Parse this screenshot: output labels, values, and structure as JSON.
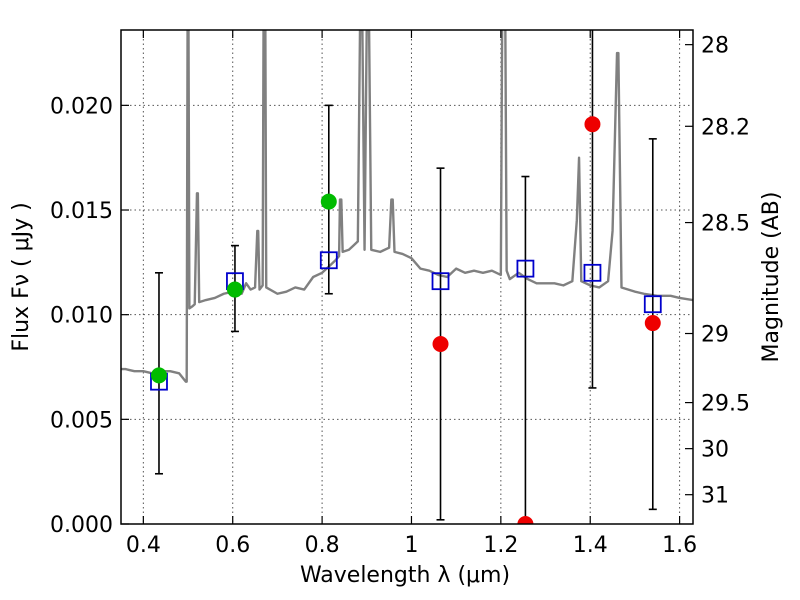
{
  "chart_data": {
    "type": "scatter",
    "xlabel": "Wavelength  λ (μm)",
    "ylabel": "Flux  Fν  ( μJy )",
    "y2label": "Magnitude (AB)",
    "xlim": [
      0.35,
      1.63
    ],
    "ylim": [
      0.0,
      0.0236
    ],
    "grid": true,
    "x_ticks": [
      0.4,
      0.6,
      0.8,
      1.0,
      1.2,
      1.4,
      1.6
    ],
    "x_tick_labels": [
      "0.4",
      "0.6",
      "0.8",
      "1",
      "1.2",
      "1.4",
      "1.6"
    ],
    "y_ticks": [
      0.0,
      0.005,
      0.01,
      0.015,
      0.02
    ],
    "y_tick_labels": [
      "0.000",
      "0.005",
      "0.010",
      "0.015",
      "0.020"
    ],
    "y2_ticks": [
      {
        "label": "28",
        "flux": 0.0229
      },
      {
        "label": "28.2",
        "flux": 0.019
      },
      {
        "label": "28.5",
        "flux": 0.0144
      },
      {
        "label": "29",
        "flux": 0.0091
      },
      {
        "label": "29.5",
        "flux": 0.0058
      },
      {
        "label": "30",
        "flux": 0.0036
      },
      {
        "label": "31",
        "flux": 0.0014
      }
    ],
    "colors": {
      "sed": "#808080",
      "model": "#0000cc",
      "detected": "#00bb00",
      "observed": "#ee0000",
      "errorbar": "#000000",
      "grid": "#555555"
    },
    "series": [
      {
        "type": "line",
        "color": "#808080",
        "points": [
          [
            0.35,
            0.0074
          ],
          [
            0.36,
            0.0074
          ],
          [
            0.38,
            0.0073
          ],
          [
            0.4,
            0.0073
          ],
          [
            0.42,
            0.0072
          ],
          [
            0.44,
            0.0073
          ],
          [
            0.46,
            0.0073
          ],
          [
            0.48,
            0.0072
          ],
          [
            0.495,
            0.0068
          ],
          [
            0.497,
            0.0068
          ],
          [
            0.499,
            0.024
          ],
          [
            0.501,
            0.024
          ],
          [
            0.503,
            0.0103
          ],
          [
            0.51,
            0.0104
          ],
          [
            0.515,
            0.0105
          ],
          [
            0.52,
            0.0158
          ],
          [
            0.522,
            0.0158
          ],
          [
            0.525,
            0.0106
          ],
          [
            0.54,
            0.0107
          ],
          [
            0.56,
            0.0108
          ],
          [
            0.58,
            0.011
          ],
          [
            0.6,
            0.0111
          ],
          [
            0.62,
            0.011
          ],
          [
            0.63,
            0.0115
          ],
          [
            0.64,
            0.0112
          ],
          [
            0.65,
            0.0113
          ],
          [
            0.655,
            0.014
          ],
          [
            0.657,
            0.014
          ],
          [
            0.66,
            0.0112
          ],
          [
            0.667,
            0.0114
          ],
          [
            0.669,
            0.024
          ],
          [
            0.673,
            0.024
          ],
          [
            0.675,
            0.0113
          ],
          [
            0.7,
            0.011
          ],
          [
            0.72,
            0.0111
          ],
          [
            0.74,
            0.0113
          ],
          [
            0.76,
            0.0112
          ],
          [
            0.78,
            0.0118
          ],
          [
            0.8,
            0.012
          ],
          [
            0.81,
            0.0122
          ],
          [
            0.82,
            0.0124
          ],
          [
            0.83,
            0.0126
          ],
          [
            0.838,
            0.0128
          ],
          [
            0.84,
            0.0155
          ],
          [
            0.843,
            0.0155
          ],
          [
            0.846,
            0.013
          ],
          [
            0.86,
            0.0131
          ],
          [
            0.87,
            0.0133
          ],
          [
            0.88,
            0.0135
          ],
          [
            0.885,
            0.024
          ],
          [
            0.89,
            0.024
          ],
          [
            0.895,
            0.0131
          ],
          [
            0.9,
            0.024
          ],
          [
            0.905,
            0.024
          ],
          [
            0.91,
            0.0131
          ],
          [
            0.93,
            0.013
          ],
          [
            0.95,
            0.0132
          ],
          [
            0.955,
            0.0155
          ],
          [
            0.958,
            0.0155
          ],
          [
            0.962,
            0.013
          ],
          [
            0.98,
            0.0129
          ],
          [
            1.0,
            0.0127
          ],
          [
            1.02,
            0.0122
          ],
          [
            1.04,
            0.0121
          ],
          [
            1.06,
            0.0119
          ],
          [
            1.08,
            0.0118
          ],
          [
            1.1,
            0.0122
          ],
          [
            1.12,
            0.012
          ],
          [
            1.14,
            0.0121
          ],
          [
            1.16,
            0.012
          ],
          [
            1.18,
            0.0121
          ],
          [
            1.2,
            0.0119
          ],
          [
            1.203,
            0.024
          ],
          [
            1.21,
            0.024
          ],
          [
            1.213,
            0.0121
          ],
          [
            1.22,
            0.0117
          ],
          [
            1.24,
            0.012
          ],
          [
            1.26,
            0.0117
          ],
          [
            1.28,
            0.0115
          ],
          [
            1.3,
            0.0115
          ],
          [
            1.32,
            0.0115
          ],
          [
            1.34,
            0.0114
          ],
          [
            1.36,
            0.0116
          ],
          [
            1.37,
            0.0145
          ],
          [
            1.375,
            0.0175
          ],
          [
            1.38,
            0.0116
          ],
          [
            1.4,
            0.0114
          ],
          [
            1.42,
            0.0113
          ],
          [
            1.44,
            0.0116
          ],
          [
            1.45,
            0.014
          ],
          [
            1.46,
            0.0225
          ],
          [
            1.463,
            0.0225
          ],
          [
            1.47,
            0.0113
          ],
          [
            1.5,
            0.0111
          ],
          [
            1.52,
            0.011
          ],
          [
            1.55,
            0.0109
          ],
          [
            1.58,
            0.0109
          ],
          [
            1.6,
            0.0108
          ],
          [
            1.63,
            0.0107
          ]
        ]
      },
      {
        "type": "errorbar",
        "color": "#000000",
        "items": [
          {
            "x": 0.435,
            "low": 0.0024,
            "high": 0.012
          },
          {
            "x": 0.605,
            "low": 0.0092,
            "high": 0.0133
          },
          {
            "x": 0.815,
            "low": 0.011,
            "high": 0.02
          },
          {
            "x": 1.065,
            "low": 0.0002,
            "high": 0.017
          },
          {
            "x": 1.255,
            "low": 0.0,
            "high": 0.0166
          },
          {
            "x": 1.405,
            "low": 0.0065,
            "high": 0.024
          },
          {
            "x": 1.54,
            "low": 0.0007,
            "high": 0.0184
          }
        ]
      },
      {
        "type": "scatter",
        "marker": "square",
        "color": "#0000cc",
        "points": [
          {
            "x": 0.435,
            "y": 0.0068
          },
          {
            "x": 0.605,
            "y": 0.0116
          },
          {
            "x": 0.815,
            "y": 0.0126
          },
          {
            "x": 1.065,
            "y": 0.0116
          },
          {
            "x": 1.255,
            "y": 0.0122
          },
          {
            "x": 1.405,
            "y": 0.012
          },
          {
            "x": 1.54,
            "y": 0.0105
          }
        ]
      },
      {
        "type": "scatter",
        "marker": "circle",
        "color": "#00bb00",
        "points": [
          {
            "x": 0.435,
            "y": 0.0071
          },
          {
            "x": 0.605,
            "y": 0.0112
          },
          {
            "x": 0.815,
            "y": 0.0154
          }
        ]
      },
      {
        "type": "scatter",
        "marker": "circle",
        "color": "#ee0000",
        "points": [
          {
            "x": 1.065,
            "y": 0.0086
          },
          {
            "x": 1.255,
            "y": 0.0
          },
          {
            "x": 1.405,
            "y": 0.0191
          },
          {
            "x": 1.54,
            "y": 0.0096
          }
        ]
      }
    ]
  }
}
